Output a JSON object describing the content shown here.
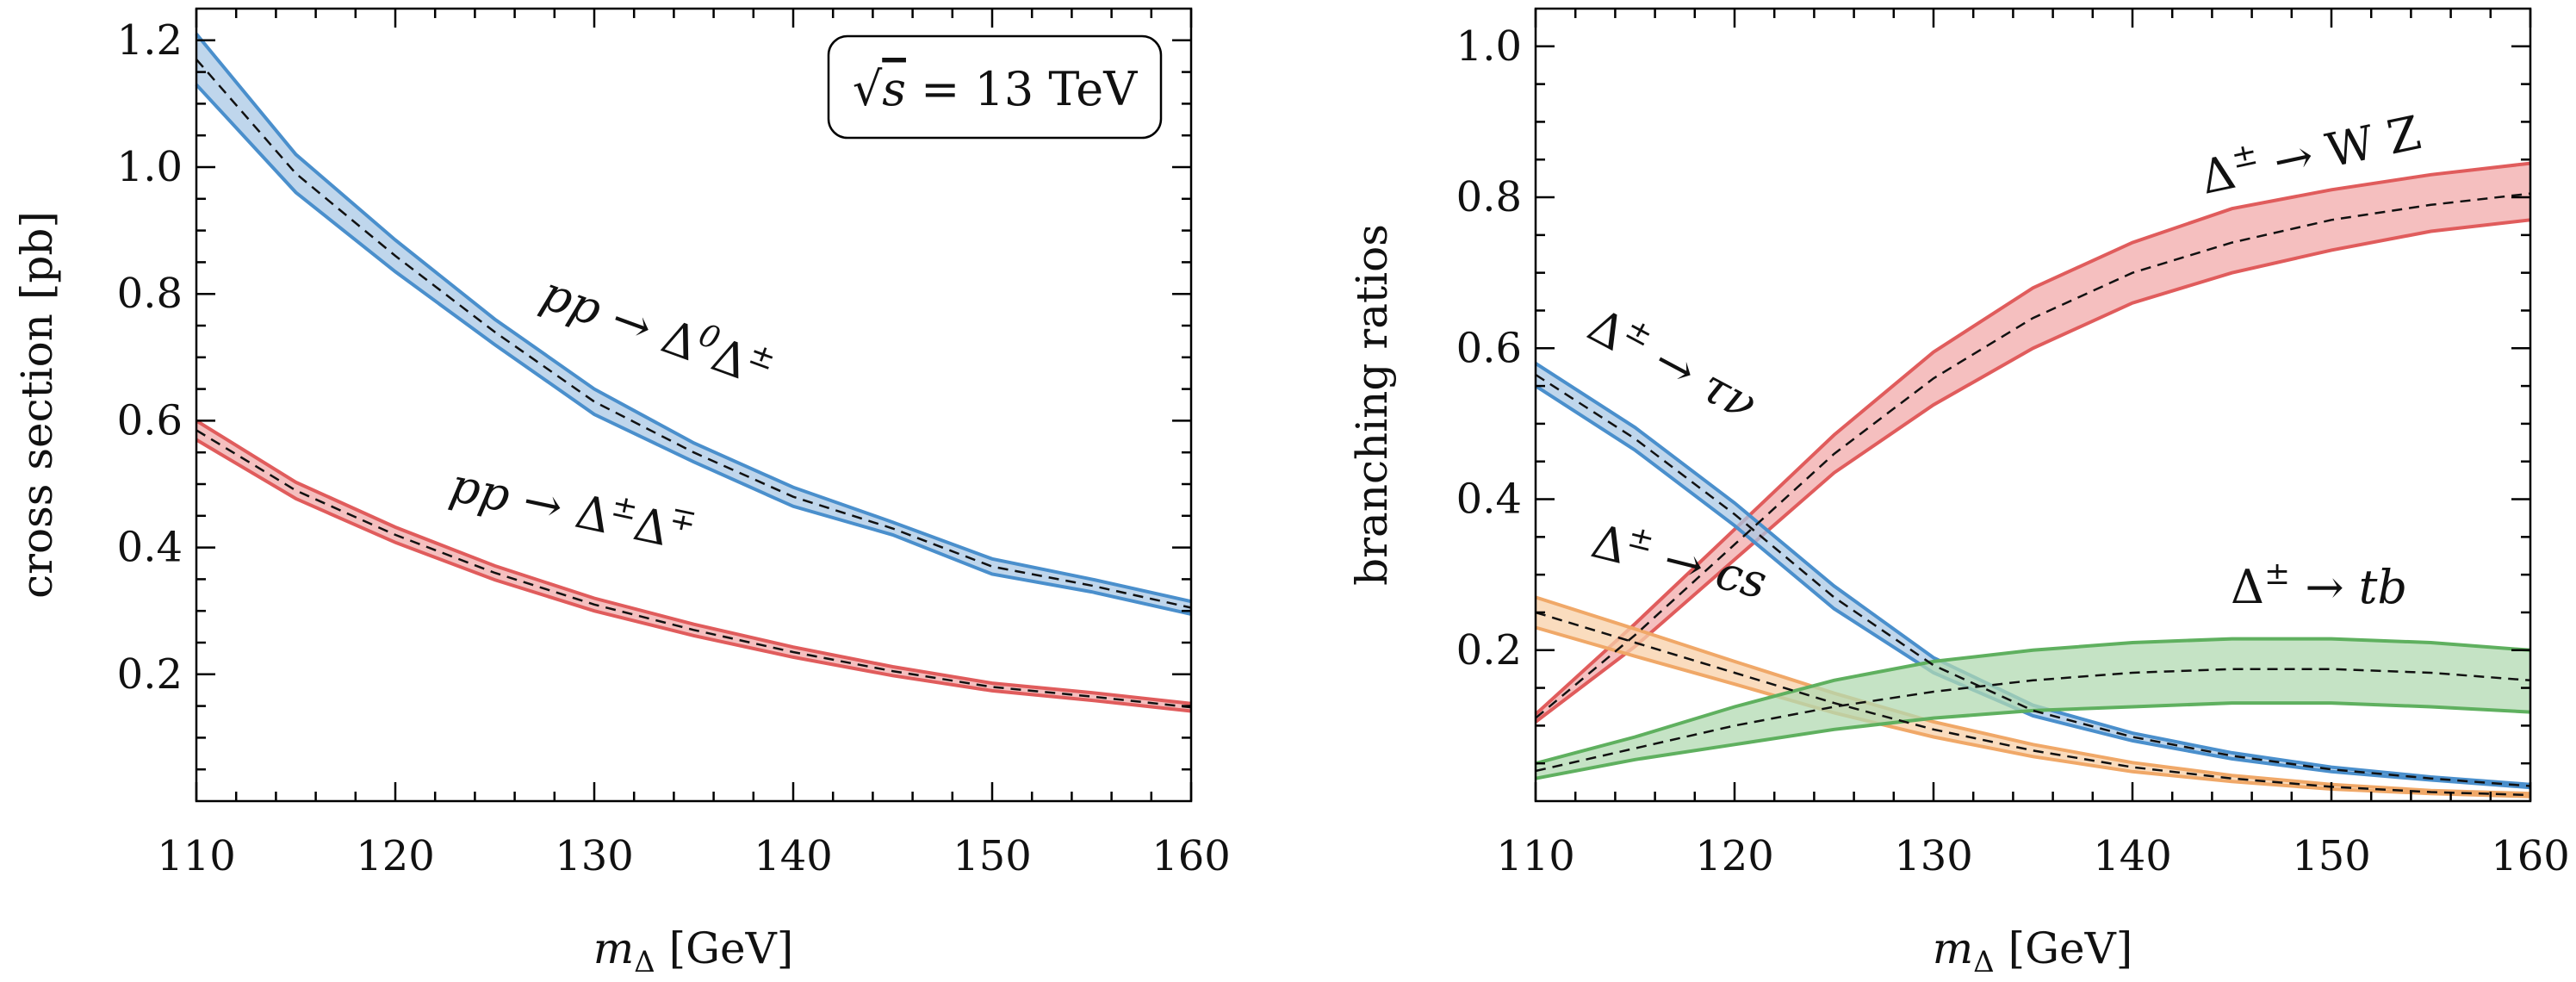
{
  "chart_data": [
    {
      "type": "line",
      "xlabel": "m_Δ [GeV]",
      "ylabel": "cross section [pb]",
      "xlim": [
        110,
        160
      ],
      "ylim": [
        0,
        1.25
      ],
      "xticks": [
        "110",
        "120",
        "130",
        "140",
        "150",
        "160"
      ],
      "yticks": [
        "0.2",
        "0.4",
        "0.6",
        "0.8",
        "1.0",
        "1.2"
      ],
      "legend_box": "√s = 13 TeV",
      "series": [
        {
          "name": "pp → Δ⁰Δ±",
          "color": "#4a8fcc",
          "fill": "#a9c8e6",
          "x": [
            110,
            115,
            120,
            125,
            130,
            135,
            140,
            145,
            150,
            155,
            160
          ],
          "central": [
            1.17,
            0.99,
            0.86,
            0.74,
            0.63,
            0.55,
            0.48,
            0.43,
            0.37,
            0.34,
            0.305
          ],
          "upper": [
            1.21,
            1.02,
            0.885,
            0.76,
            0.65,
            0.565,
            0.495,
            0.44,
            0.382,
            0.35,
            0.315
          ],
          "lower": [
            1.13,
            0.96,
            0.835,
            0.72,
            0.61,
            0.535,
            0.465,
            0.42,
            0.358,
            0.33,
            0.295
          ]
        },
        {
          "name": "pp → Δ±Δ∓",
          "color": "#e05c5c",
          "fill": "#f2aaaa",
          "x": [
            110,
            115,
            120,
            125,
            130,
            135,
            140,
            145,
            150,
            155,
            160
          ],
          "central": [
            0.585,
            0.49,
            0.42,
            0.36,
            0.31,
            0.27,
            0.235,
            0.205,
            0.18,
            0.165,
            0.148
          ],
          "upper": [
            0.6,
            0.503,
            0.432,
            0.371,
            0.32,
            0.279,
            0.243,
            0.212,
            0.186,
            0.171,
            0.154
          ],
          "lower": [
            0.57,
            0.477,
            0.408,
            0.349,
            0.3,
            0.261,
            0.227,
            0.198,
            0.174,
            0.159,
            0.142
          ]
        }
      ]
    },
    {
      "type": "line",
      "xlabel": "m_Δ [GeV]",
      "ylabel": "branching ratios",
      "xlim": [
        110,
        160
      ],
      "ylim": [
        0,
        1.05
      ],
      "xticks": [
        "110",
        "120",
        "130",
        "140",
        "150",
        "160"
      ],
      "yticks": [
        "0.2",
        "0.4",
        "0.6",
        "0.8",
        "1.0"
      ],
      "series": [
        {
          "name": "Δ± → WZ",
          "color": "#e05c5c",
          "fill": "#f2aaaa",
          "x": [
            110,
            115,
            120,
            125,
            130,
            135,
            140,
            145,
            150,
            155,
            160
          ],
          "central": [
            0.11,
            0.22,
            0.34,
            0.46,
            0.56,
            0.64,
            0.7,
            0.74,
            0.77,
            0.79,
            0.805
          ],
          "upper": [
            0.115,
            0.235,
            0.36,
            0.485,
            0.595,
            0.68,
            0.74,
            0.785,
            0.81,
            0.83,
            0.845
          ],
          "lower": [
            0.105,
            0.205,
            0.32,
            0.435,
            0.525,
            0.6,
            0.66,
            0.7,
            0.73,
            0.755,
            0.77
          ]
        },
        {
          "name": "Δ± → τν",
          "color": "#4a8fcc",
          "fill": "#a9c8e6",
          "x": [
            110,
            115,
            120,
            125,
            130,
            135,
            140,
            145,
            150,
            155,
            160
          ],
          "central": [
            0.565,
            0.48,
            0.38,
            0.27,
            0.18,
            0.12,
            0.085,
            0.06,
            0.042,
            0.03,
            0.02
          ],
          "upper": [
            0.58,
            0.495,
            0.395,
            0.285,
            0.19,
            0.127,
            0.09,
            0.064,
            0.045,
            0.032,
            0.022
          ],
          "lower": [
            0.55,
            0.465,
            0.365,
            0.255,
            0.17,
            0.113,
            0.08,
            0.056,
            0.039,
            0.028,
            0.018
          ]
        },
        {
          "name": "Δ± → cs",
          "color": "#f0a868",
          "fill": "#f8d0a8",
          "x": [
            110,
            115,
            120,
            125,
            130,
            135,
            140,
            145,
            150,
            155,
            160
          ],
          "central": [
            0.25,
            0.21,
            0.17,
            0.13,
            0.095,
            0.067,
            0.045,
            0.03,
            0.019,
            0.012,
            0.008
          ],
          "upper": [
            0.27,
            0.228,
            0.185,
            0.143,
            0.105,
            0.075,
            0.051,
            0.034,
            0.022,
            0.014,
            0.01
          ],
          "lower": [
            0.23,
            0.192,
            0.155,
            0.117,
            0.085,
            0.059,
            0.039,
            0.026,
            0.016,
            0.01,
            0.006
          ]
        },
        {
          "name": "Δ± → tb",
          "color": "#5fb05f",
          "fill": "#b2dab2",
          "x": [
            110,
            115,
            120,
            125,
            130,
            135,
            140,
            145,
            150,
            155,
            160
          ],
          "central": [
            0.04,
            0.07,
            0.1,
            0.125,
            0.145,
            0.16,
            0.17,
            0.175,
            0.175,
            0.17,
            0.16
          ],
          "upper": [
            0.05,
            0.085,
            0.125,
            0.16,
            0.185,
            0.2,
            0.21,
            0.215,
            0.215,
            0.21,
            0.2
          ],
          "lower": [
            0.03,
            0.055,
            0.075,
            0.095,
            0.11,
            0.12,
            0.125,
            0.13,
            0.13,
            0.125,
            0.118
          ]
        }
      ]
    }
  ]
}
